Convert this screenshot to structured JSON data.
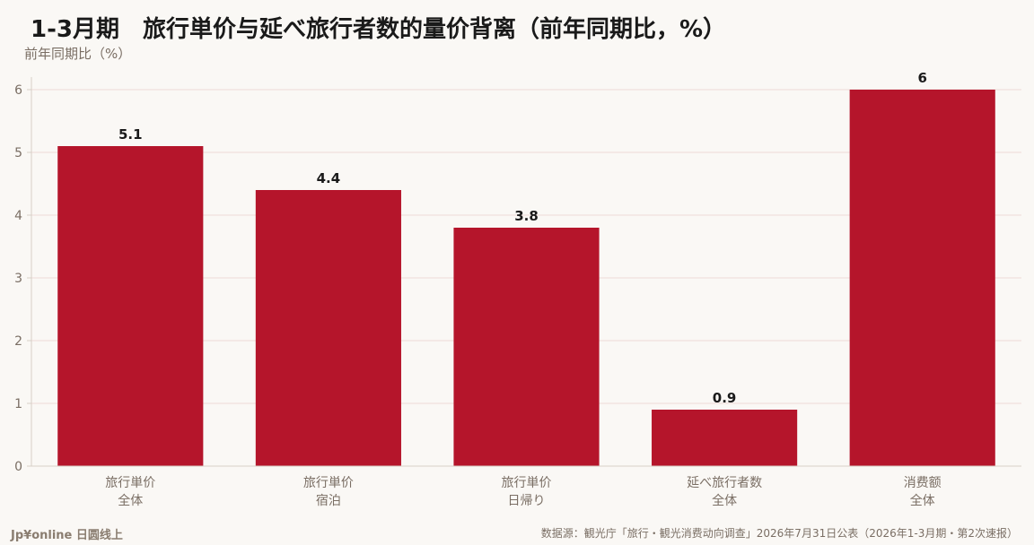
{
  "title": "1-3月期　旅行単价与延べ旅行者数的量价背离（前年同期比，%）",
  "unit_label": "前年同期比（%）",
  "footer": {
    "brand": "Jp¥online 日圆线上",
    "source": "数据源：観光庁「旅行・観光消费动向调查」2026年7月31日公表（2026年1-3月期・第2次速报）"
  },
  "colors": {
    "bar": "#b5152b",
    "grid": "#eddad8",
    "axis": "#d8cfc6",
    "tick_text": "#7a6e64",
    "label_text": "#1a1a1a"
  },
  "chart_data": {
    "type": "bar",
    "categories": [
      [
        "旅行単价",
        "全体"
      ],
      [
        "旅行単价",
        "宿泊"
      ],
      [
        "旅行単价",
        "日帰り"
      ],
      [
        "延べ旅行者数",
        "全体"
      ],
      [
        "消费额",
        "全体"
      ]
    ],
    "values": [
      5.1,
      4.4,
      3.8,
      0.9,
      6
    ],
    "value_labels": [
      "5.1",
      "4.4",
      "3.8",
      "0.9",
      "6"
    ],
    "ylim": [
      0,
      6.2
    ],
    "yticks": [
      0,
      1,
      2,
      3,
      4,
      5,
      6
    ],
    "grid": true
  }
}
